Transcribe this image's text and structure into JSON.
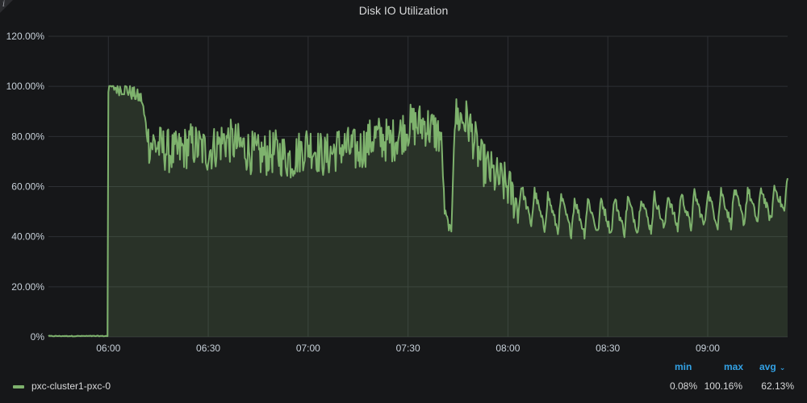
{
  "chart_data": {
    "type": "area",
    "title": "Disk IO Utilization",
    "xlabel": "",
    "ylabel": "",
    "ylim": [
      0,
      120
    ],
    "yticks": [
      "0%",
      "20.00%",
      "40.00%",
      "60.00%",
      "80.00%",
      "100.00%",
      "120.00%"
    ],
    "xticks": [
      "06:00",
      "06:30",
      "07:00",
      "07:30",
      "08:00",
      "08:30",
      "09:00"
    ],
    "xrange": [
      "05:42",
      "09:24"
    ],
    "grid": true,
    "legend_position": "bottom",
    "series": [
      {
        "name": "pxc-cluster1-pxc-0",
        "color": "#7eb26d",
        "points": [
          [
            "05:42",
            0.3
          ],
          [
            "05:50",
            0.2
          ],
          [
            "05:59",
            0.3
          ],
          [
            "06:00",
            100
          ],
          [
            "06:05",
            99
          ],
          [
            "06:10",
            95
          ],
          [
            "06:12",
            78
          ],
          [
            "06:20",
            73
          ],
          [
            "06:25",
            77
          ],
          [
            "06:30",
            74
          ],
          [
            "06:35",
            79
          ],
          [
            "06:40",
            76
          ],
          [
            "06:45",
            72
          ],
          [
            "06:50",
            74
          ],
          [
            "06:55",
            71
          ],
          [
            "07:00",
            77
          ],
          [
            "07:05",
            72
          ],
          [
            "07:10",
            76
          ],
          [
            "07:15",
            74
          ],
          [
            "07:20",
            80
          ],
          [
            "07:25",
            78
          ],
          [
            "07:30",
            84
          ],
          [
            "07:35",
            85
          ],
          [
            "07:40",
            80
          ],
          [
            "07:41",
            50
          ],
          [
            "07:43",
            41
          ],
          [
            "07:44",
            88
          ],
          [
            "07:48",
            86
          ],
          [
            "07:52",
            70
          ],
          [
            "07:56",
            64
          ],
          [
            "08:00",
            60
          ],
          [
            "08:03",
            52
          ],
          [
            "08:10",
            48
          ],
          [
            "08:20",
            46
          ],
          [
            "08:30",
            46
          ],
          [
            "08:40",
            47
          ],
          [
            "08:50",
            48
          ],
          [
            "09:00",
            49
          ],
          [
            "09:10",
            50
          ],
          [
            "09:20",
            51
          ],
          [
            "09:24",
            56
          ]
        ]
      }
    ]
  },
  "legend": {
    "headers": {
      "min": "min",
      "max": "max",
      "avg": "avg"
    },
    "series_name": "pxc-cluster1-pxc-0",
    "min": "0.08%",
    "max": "100.16%",
    "avg": "62.13%"
  },
  "info_icon": "info-icon"
}
